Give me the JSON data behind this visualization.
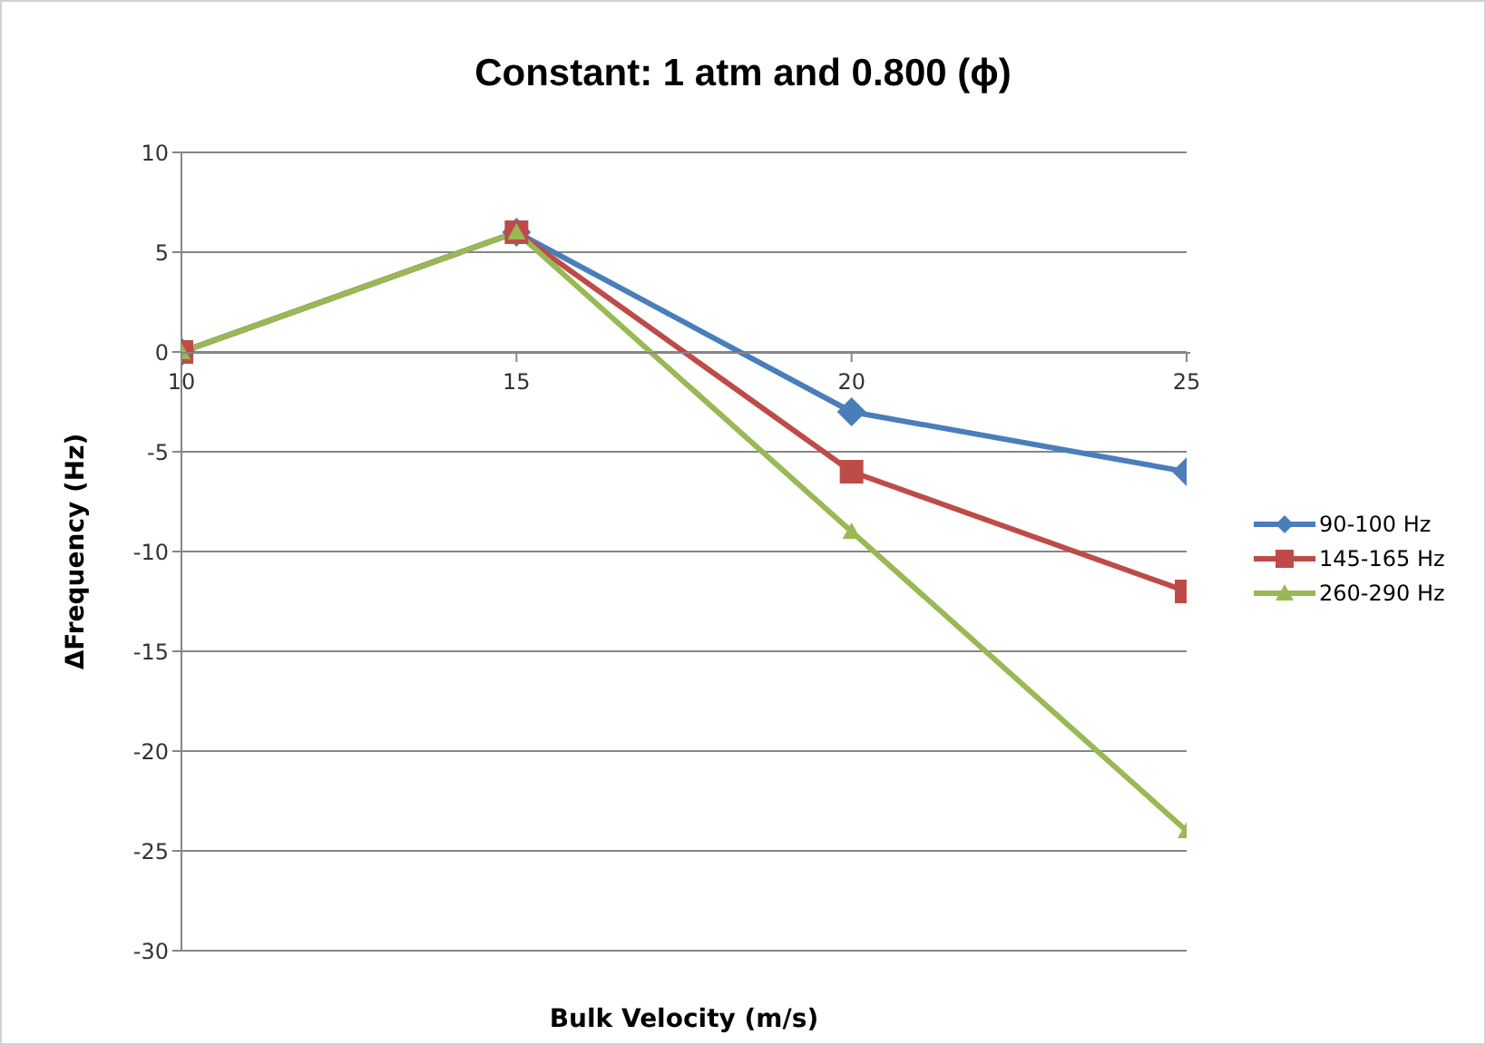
{
  "chart_data": {
    "type": "line",
    "title": "Constant: 1 atm and 0.800 (ϕ)",
    "xlabel": "Bulk Velocity (m/s)",
    "ylabel": "ΔFrequency (Hz)",
    "x": [
      10,
      15,
      20,
      25
    ],
    "xlim": [
      10,
      25
    ],
    "xticks": [
      10,
      15,
      20,
      25
    ],
    "ylim": [
      -30,
      10
    ],
    "yticks": [
      -30,
      -25,
      -20,
      -15,
      -10,
      -5,
      0,
      5,
      10
    ],
    "grid": "y",
    "legend": "right",
    "series": [
      {
        "name": "90-100 Hz",
        "color": "#4a7ebb",
        "marker": "diamond",
        "values": [
          0,
          6,
          -3,
          -6
        ]
      },
      {
        "name": "145-165 Hz",
        "color": "#be4b48",
        "marker": "square",
        "values": [
          0,
          6,
          -6,
          -12
        ]
      },
      {
        "name": "260-290 Hz",
        "color": "#98b954",
        "marker": "triangle",
        "values": [
          0,
          6,
          -9,
          -24
        ]
      }
    ]
  }
}
